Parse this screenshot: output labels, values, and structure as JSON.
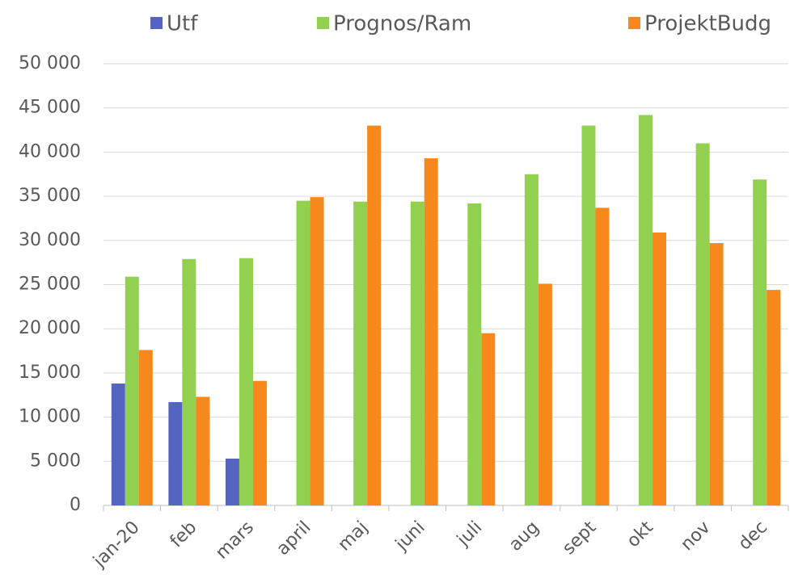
{
  "chart_data": {
    "type": "bar",
    "categories": [
      "jan-20",
      "feb",
      "mars",
      "april",
      "maj",
      "juni",
      "juli",
      "aug",
      "sept",
      "okt",
      "nov",
      "dec"
    ],
    "series": [
      {
        "name": "Utf",
        "color": "#5464c0",
        "values": [
          13800,
          11700,
          5300,
          null,
          null,
          null,
          null,
          null,
          null,
          null,
          null,
          null
        ]
      },
      {
        "name": "Prognos/Ram",
        "color": "#92d050",
        "values": [
          25900,
          27900,
          28000,
          34500,
          34400,
          34400,
          34200,
          37500,
          43000,
          44200,
          41000,
          36900
        ]
      },
      {
        "name": "ProjektBudg",
        "color": "#f7891c",
        "values": [
          17600,
          12300,
          14100,
          34900,
          43000,
          39300,
          19500,
          25100,
          33700,
          30900,
          29700,
          24400
        ]
      }
    ],
    "ylim": [
      0,
      50000
    ],
    "yticks": [
      {
        "value": 0,
        "label": "0"
      },
      {
        "value": 5000,
        "label": "5 000"
      },
      {
        "value": 10000,
        "label": "10 000"
      },
      {
        "value": 15000,
        "label": "15 000"
      },
      {
        "value": 20000,
        "label": "20 000"
      },
      {
        "value": 25000,
        "label": "25 000"
      },
      {
        "value": 30000,
        "label": "30 000"
      },
      {
        "value": 35000,
        "label": "35 000"
      },
      {
        "value": 40000,
        "label": "40 000"
      },
      {
        "value": 45000,
        "label": "45 000"
      },
      {
        "value": 50000,
        "label": "50 000"
      }
    ],
    "grid": true,
    "legend": "top"
  }
}
